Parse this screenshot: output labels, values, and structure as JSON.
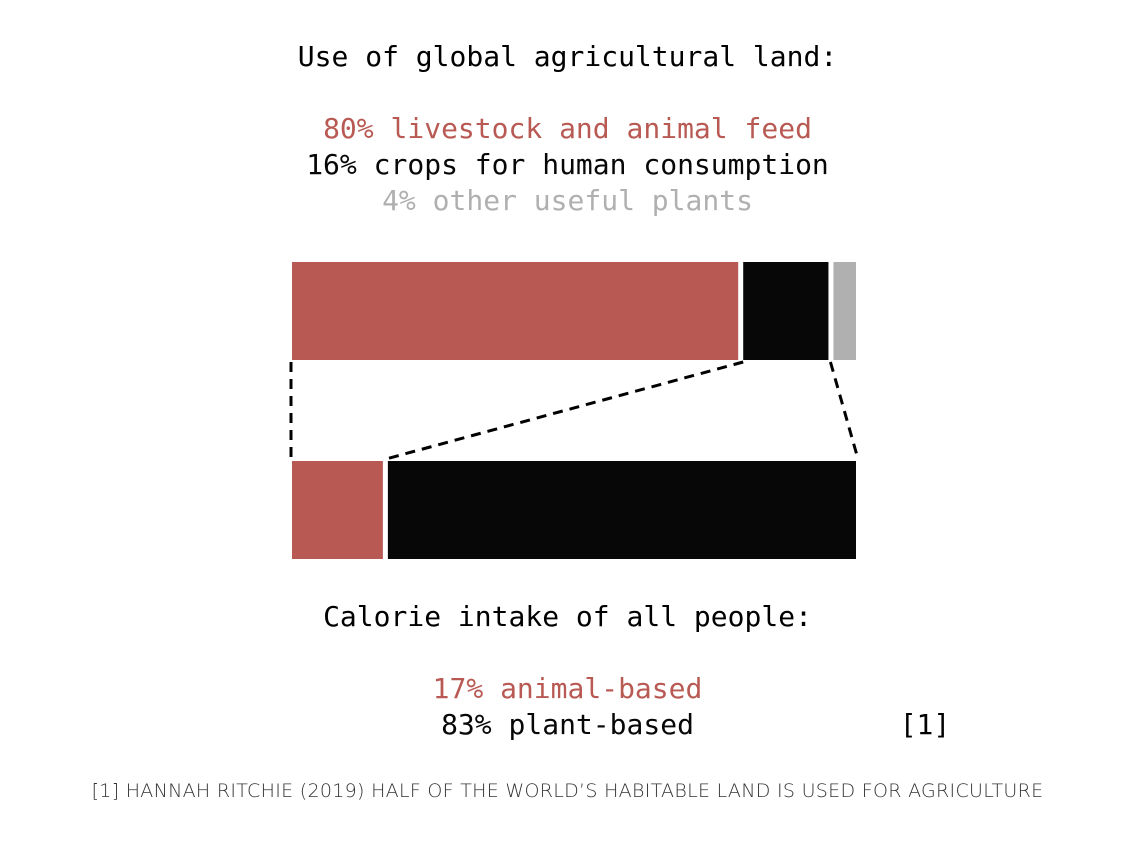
{
  "colors": {
    "animal": "#b85a53",
    "crops": "#070707",
    "other": "#b0b0b0"
  },
  "chart_data": [
    {
      "type": "bar",
      "orientation": "horizontal-stacked",
      "title": "Use of global agricultural land:",
      "labels": [
        "80% livestock and animal feed",
        "16% crops for human consumption",
        "4% other useful plants"
      ],
      "categories": [
        "livestock and animal feed",
        "crops for human consumption",
        "other useful plants"
      ],
      "values": [
        80,
        16,
        4
      ],
      "unit": "%",
      "color_keys": [
        "animal",
        "crops",
        "other"
      ]
    },
    {
      "type": "bar",
      "orientation": "horizontal-stacked",
      "title": "Calorie intake of all people:",
      "labels": [
        "17% animal-based",
        "83% plant-based"
      ],
      "categories": [
        "animal-based",
        "plant-based"
      ],
      "values": [
        17,
        83
      ],
      "unit": "%",
      "color_keys": [
        "animal",
        "crops"
      ]
    }
  ],
  "reference_tag": "[1]",
  "source_note": "[1] HANNAH RITCHIE (2019) HALF OF THE WORLD’S HABITABLE LAND IS USED FOR AGRICULTURE"
}
